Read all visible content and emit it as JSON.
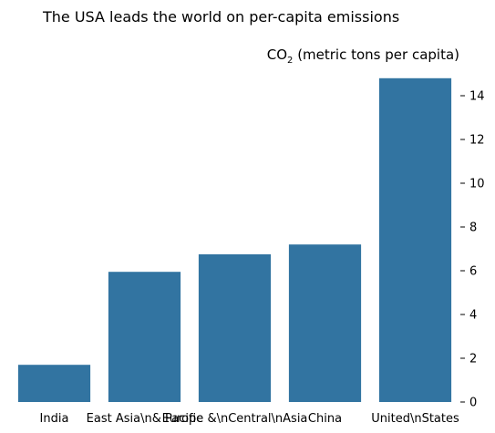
{
  "chart_data": {
    "type": "bar",
    "title": "The USA leads the world on per-capita emissions",
    "ylabel": {
      "prefix": "CO",
      "subscript": "2",
      "suffix": " (metric tons per capita)"
    },
    "xlabel": "",
    "categories": [
      "India",
      "East Asia\\n& Pacific",
      "Europe &\\nCentral\\nAsia",
      "China",
      "United\\nStates"
    ],
    "values": [
      1.7,
      5.95,
      6.75,
      7.2,
      14.8
    ],
    "ylim": [
      0,
      15
    ],
    "yticks": [
      "0",
      "2",
      "4",
      "6",
      "8",
      "10",
      "12",
      "14"
    ],
    "ytick_values": [
      0,
      2,
      4,
      6,
      8,
      10,
      12,
      14
    ],
    "yaxis_side": "right",
    "grid": false,
    "bar_color": "#3274a1"
  }
}
